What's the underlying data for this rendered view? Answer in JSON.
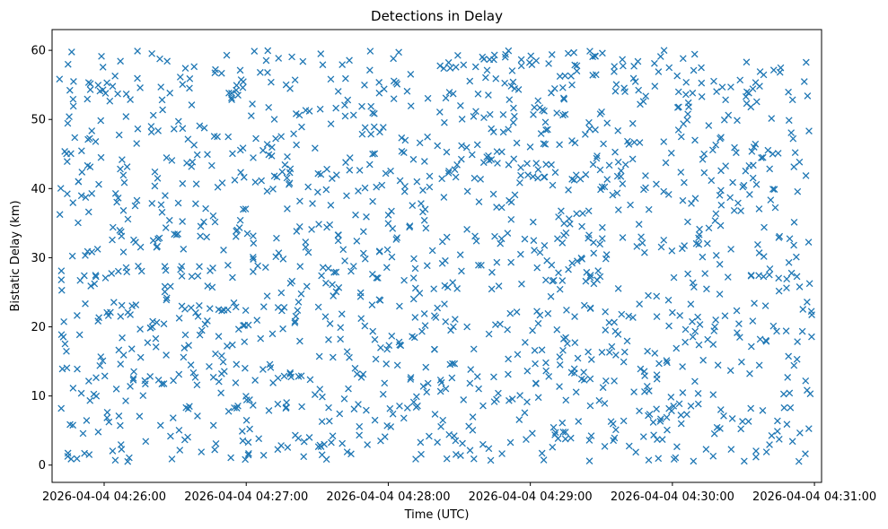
{
  "chart_data": {
    "type": "scatter",
    "title": "Detections in Delay",
    "xlabel": "Time (UTC)",
    "ylabel": "Bistatic Delay (km)",
    "x_axis": {
      "kind": "time",
      "range": [
        "2026-04-04 04:25:38",
        "2026-04-04 04:31:03"
      ],
      "ticks": [
        "2026-04-04 04:26:00",
        "2026-04-04 04:27:00",
        "2026-04-04 04:28:00",
        "2026-04-04 04:29:00",
        "2026-04-04 04:30:00",
        "2026-04-04 04:31:00"
      ]
    },
    "ylim": [
      -2.5,
      63
    ],
    "yticks": [
      0,
      10,
      20,
      30,
      40,
      50,
      60
    ],
    "grid": false,
    "legend": "none",
    "marker": "x",
    "color": "#1f77b4",
    "point_count": 1500,
    "time_span": [
      "2026-04-04 04:25:41",
      "2026-04-04 04:30:59"
    ],
    "delay_span": [
      0.5,
      60
    ]
  }
}
